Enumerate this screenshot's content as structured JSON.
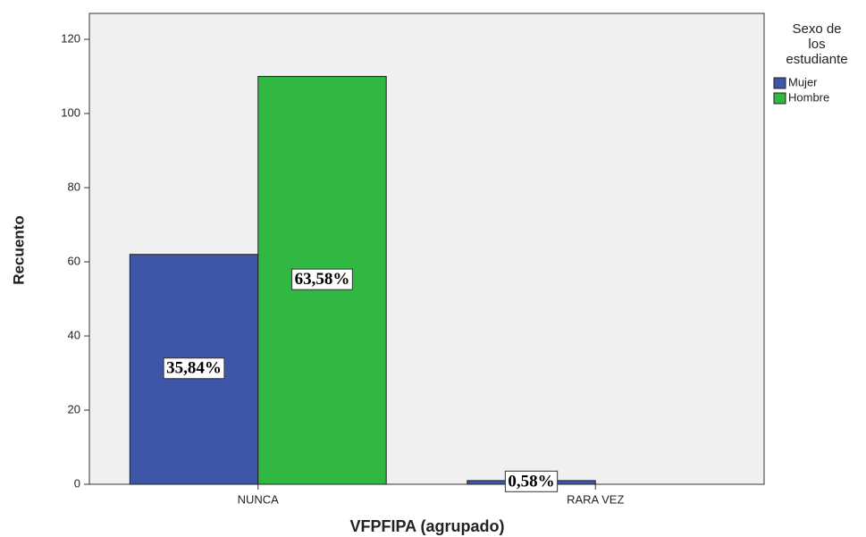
{
  "chart_data": {
    "type": "bar",
    "x_label": "VFPFIPA (agrupado)",
    "y_label": "Recuento",
    "legend_title": [
      "Sexo de",
      "los",
      "estudiante"
    ],
    "categories": [
      "NUNCA",
      "RARA VEZ"
    ],
    "series": [
      {
        "name": "Mujer",
        "color": "#3d56a8",
        "values": [
          62,
          1
        ],
        "labels": [
          "35,84%",
          "0,58%"
        ]
      },
      {
        "name": "Hombre",
        "color": "#30b843",
        "values": [
          110,
          0
        ],
        "labels": [
          "63,58%",
          null
        ]
      }
    ],
    "ylim": [
      0,
      127
    ],
    "yticks": [
      0,
      20,
      40,
      60,
      80,
      100,
      120
    ],
    "legend": "right"
  }
}
